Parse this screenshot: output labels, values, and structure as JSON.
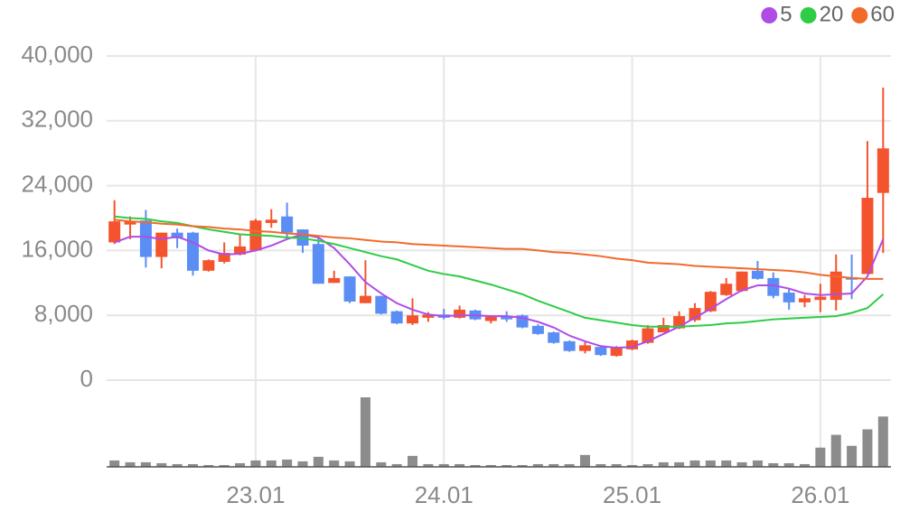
{
  "chart_data": {
    "type": "candlestick",
    "categories": [
      null,
      null,
      null,
      null,
      null,
      null,
      null,
      null,
      null,
      "23.01",
      null,
      null,
      null,
      null,
      null,
      null,
      null,
      null,
      null,
      null,
      null,
      "24.01",
      null,
      null,
      null,
      null,
      null,
      null,
      null,
      null,
      null,
      null,
      null,
      "25.01",
      null,
      null,
      null,
      null,
      null,
      null,
      null,
      null,
      null,
      null,
      null,
      "26.01",
      null,
      null,
      null,
      null
    ],
    "open": [
      17000,
      19200,
      19700,
      15200,
      18200,
      18200,
      13500,
      14600,
      15500,
      16000,
      19400,
      20200,
      18600,
      16800,
      12000,
      12800,
      9500,
      10400,
      8500,
      7000,
      7700,
      8100,
      7700,
      8600,
      7300,
      7900,
      8000,
      6700,
      5900,
      4800,
      3600,
      4100,
      3000,
      3800,
      4600,
      5900,
      6400,
      7400,
      8500,
      10500,
      11000,
      13500,
      12600,
      10800,
      9600,
      9900,
      9900,
      12700,
      13100,
      23100
    ],
    "high": [
      22200,
      20200,
      21000,
      18200,
      18700,
      18300,
      14900,
      17000,
      17900,
      19900,
      21100,
      21900,
      18600,
      17700,
      13500,
      12800,
      14800,
      10400,
      8600,
      10100,
      8400,
      8800,
      9200,
      8700,
      8000,
      8500,
      8100,
      6900,
      6000,
      4900,
      4700,
      4300,
      4200,
      5000,
      6800,
      7700,
      8500,
      9500,
      11000,
      12600,
      13400,
      14700,
      13300,
      11300,
      10500,
      11900,
      15500,
      15500,
      29500,
      36100
    ],
    "low": [
      16800,
      17400,
      13900,
      13800,
      16300,
      12900,
      13400,
      14400,
      15400,
      15900,
      18800,
      17400,
      15700,
      11900,
      12000,
      9500,
      9500,
      8100,
      6900,
      6800,
      7200,
      7500,
      7600,
      7400,
      7000,
      7200,
      6400,
      5600,
      4500,
      3500,
      3300,
      3000,
      2900,
      3700,
      4500,
      5900,
      6300,
      7200,
      8400,
      10400,
      10900,
      12400,
      10100,
      8700,
      9000,
      8400,
      8600,
      10000,
      13100,
      15700
    ],
    "close": [
      19600,
      19600,
      15200,
      18200,
      17500,
      13500,
      14800,
      15700,
      16500,
      19700,
      19800,
      18200,
      16600,
      11900,
      12600,
      9700,
      10400,
      8200,
      7000,
      8000,
      8100,
      7700,
      8700,
      7500,
      7800,
      7500,
      6500,
      5700,
      4600,
      3600,
      4300,
      3100,
      4000,
      4900,
      6400,
      6800,
      7900,
      8900,
      10900,
      11900,
      13400,
      12500,
      10400,
      9600,
      10100,
      10300,
      13400,
      12400,
      22500,
      28600
    ],
    "up_color": "#f4542d",
    "down_color": "#5b8ef5",
    "series": [
      {
        "name": "5",
        "color": "#b04ce6",
        "values": [
          17000,
          17700,
          17700,
          17400,
          17700,
          17000,
          16000,
          15500,
          15600,
          16000,
          16600,
          17400,
          18000,
          17600,
          16300,
          14300,
          12100,
          10700,
          9500,
          8700,
          8100,
          7900,
          8000,
          8000,
          7900,
          7900,
          7700,
          7200,
          6500,
          5500,
          4800,
          4200,
          4000,
          4100,
          4800,
          5700,
          6600,
          7700,
          8800,
          10000,
          11100,
          11700,
          11700,
          11300,
          10700,
          10500,
          10600,
          10700,
          12800,
          17400
        ]
      },
      {
        "name": "20",
        "color": "#2ecc47",
        "values": [
          20200,
          20000,
          19900,
          19600,
          19400,
          19000,
          18600,
          18300,
          18000,
          17900,
          17800,
          17600,
          17500,
          17200,
          16800,
          16300,
          15800,
          15300,
          14900,
          14200,
          13500,
          13100,
          12800,
          12300,
          11800,
          11200,
          10600,
          9800,
          9100,
          8400,
          7700,
          7400,
          7100,
          6800,
          6600,
          6600,
          6600,
          6700,
          6800,
          7000,
          7100,
          7300,
          7500,
          7600,
          7700,
          7800,
          7900,
          8300,
          8900,
          10600
        ]
      },
      {
        "name": "60",
        "color": "#f26a2a",
        "values": [
          19800,
          19600,
          19500,
          19300,
          19200,
          19000,
          18900,
          18700,
          18600,
          18400,
          18300,
          18100,
          18000,
          17800,
          17600,
          17500,
          17300,
          17100,
          17000,
          16800,
          16700,
          16600,
          16500,
          16400,
          16300,
          16200,
          16200,
          16000,
          15800,
          15700,
          15500,
          15300,
          15000,
          14800,
          14500,
          14400,
          14300,
          14100,
          14000,
          13900,
          13800,
          13700,
          13600,
          13500,
          13300,
          13000,
          12800,
          12600,
          12500,
          12500
        ]
      }
    ],
    "volume": {
      "color": "#8c8c8c",
      "values": [
        7,
        5,
        5,
        4,
        3,
        3,
        2,
        2,
        4,
        7,
        7,
        8,
        6,
        11,
        7,
        6,
        76,
        5,
        3,
        12,
        3,
        3,
        3,
        2,
        2,
        2,
        2,
        3,
        3,
        3,
        13,
        3,
        3,
        2,
        3,
        5,
        5,
        7,
        7,
        7,
        5,
        7,
        4,
        4,
        3,
        21,
        35,
        23,
        41,
        55
      ]
    },
    "ylim": [
      0,
      40000
    ],
    "yticks": [
      0,
      {
        "value": 8000,
        "label": "8,000"
      },
      {
        "value": 16000,
        "label": "16,000"
      },
      {
        "value": 24000,
        "label": "24,000"
      },
      {
        "value": 32000,
        "label": "32,000"
      },
      {
        "value": 40000,
        "label": "40,000"
      }
    ],
    "grid": true,
    "legend": "top-right"
  }
}
